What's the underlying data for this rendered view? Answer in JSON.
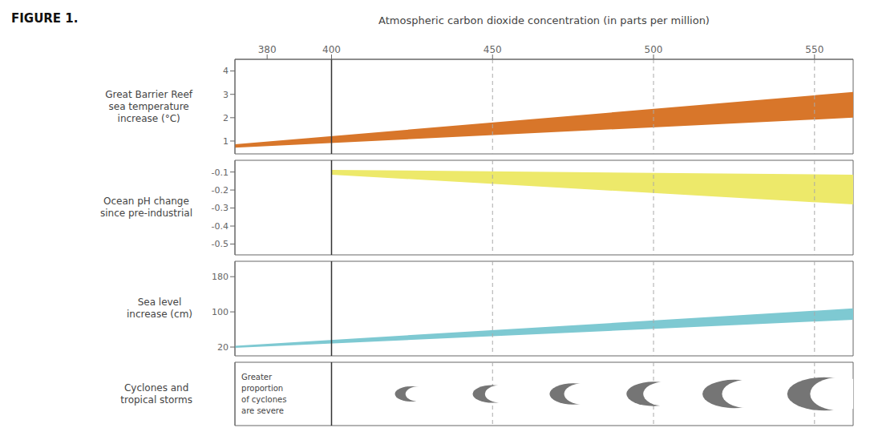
{
  "chart_data": [
    {
      "type": "area",
      "title": "FIGURE 1.",
      "x_label": "Atmospheric carbon dioxide concentration (in parts per million)",
      "y_label": "Great Barrier Reef\nsea temperature\nincrease (°C)",
      "x": [
        370,
        562
      ],
      "low": [
        0.72,
        2.0
      ],
      "high": [
        0.86,
        3.1
      ],
      "color": "#D8762A",
      "xlim": [
        370,
        562
      ],
      "xticks": [
        380,
        400,
        450,
        500,
        550
      ],
      "ylim": [
        0.45,
        4.5
      ],
      "yticks": [
        1,
        2,
        3,
        4
      ],
      "reference_lines": [
        {
          "x": 400,
          "line_style": "dashed"
        },
        {
          "x": 450,
          "line_style": "dashed"
        },
        {
          "x": 500,
          "line_style": "dashed"
        },
        {
          "x": 550,
          "line_style": "dashed"
        },
        {
          "x": 400,
          "line_style": "solid"
        }
      ]
    },
    {
      "type": "area",
      "y_label": "Ocean pH change\nsince pre-industrial",
      "x": [
        400,
        562
      ],
      "low": [
        -0.115,
        -0.28
      ],
      "high": [
        -0.088,
        -0.115
      ],
      "color": "#EDE96A",
      "xlim": [
        370,
        562
      ],
      "ylim": [
        -0.56,
        -0.035
      ],
      "yticks": [
        -0.1,
        -0.2,
        -0.3,
        -0.4,
        -0.5
      ],
      "tick_labels": "y",
      "reference_lines": [
        {
          "x": 400,
          "line_style": "dashed"
        },
        {
          "x": 450,
          "line_style": "dashed"
        },
        {
          "x": 500,
          "line_style": "dashed"
        },
        {
          "x": 550,
          "line_style": "dashed"
        },
        {
          "x": 400,
          "line_style": "solid"
        }
      ]
    },
    {
      "type": "area",
      "y_label": "Sea level\nincrease (cm)",
      "x": [
        370,
        562
      ],
      "low": [
        18,
        82
      ],
      "high": [
        23,
        108
      ],
      "color": "#7EC9D2",
      "xlim": [
        370,
        562
      ],
      "ylim": [
        0,
        215
      ],
      "yticks": [
        20,
        100,
        180
      ],
      "tick_labels": "y",
      "reference_lines": [
        {
          "x": 400,
          "line_style": "dashed"
        },
        {
          "x": 450,
          "line_style": "dashed"
        },
        {
          "x": 500,
          "line_style": "dashed"
        },
        {
          "x": 550,
          "line_style": "dashed"
        },
        {
          "x": 400,
          "line_style": "solid"
        }
      ]
    },
    {
      "type": "scatter",
      "marker": "cyclone",
      "y_label": "Cyclones and\ntropical storms",
      "x": [
        425,
        450,
        475,
        500,
        525,
        553
      ],
      "values": [
        0.5,
        0.5,
        0.5,
        0.5,
        0.5,
        0.5
      ],
      "sizes": [
        0.38,
        0.44,
        0.52,
        0.6,
        0.7,
        0.82
      ],
      "color": "#757575",
      "xlim": [
        370,
        562
      ],
      "ylim": [
        0,
        1
      ],
      "tick_labels": false,
      "annotations": [
        {
          "text": "Greater\nproportion\nof cyclones\nare severe",
          "x": 372,
          "y": 0.5
        }
      ],
      "reference_lines": [
        {
          "x": 400,
          "line_style": "dashed"
        },
        {
          "x": 450,
          "line_style": "dashed"
        },
        {
          "x": 500,
          "line_style": "dashed"
        },
        {
          "x": 550,
          "line_style": "dashed"
        },
        {
          "x": 400,
          "line_style": "solid"
        }
      ]
    }
  ]
}
